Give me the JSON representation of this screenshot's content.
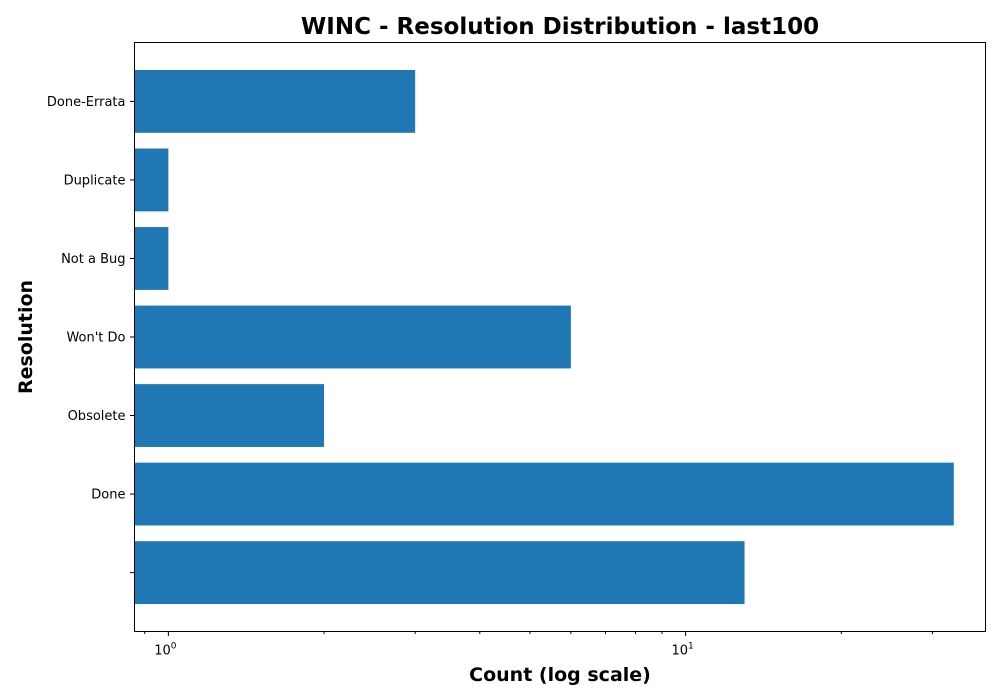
{
  "chart_data": {
    "type": "bar",
    "orientation": "horizontal",
    "title": "WINC - Resolution Distribution - last100",
    "xlabel": "Count (log scale)",
    "ylabel": "Resolution",
    "x_scale": "log",
    "xlim": [
      0.86,
      38
    ],
    "categories": [
      "",
      "Done",
      "Obsolete",
      "Won't Do",
      "Not a Bug",
      "Duplicate",
      "Done-Errata"
    ],
    "values": [
      13,
      33,
      2,
      6,
      1,
      1,
      3
    ],
    "x_major_ticks": [
      {
        "value": 1,
        "base": "10",
        "exp": "0"
      },
      {
        "value": 10,
        "base": "10",
        "exp": "1"
      }
    ],
    "bar_color": "#1f77b4",
    "grid": false,
    "legend": "none"
  }
}
